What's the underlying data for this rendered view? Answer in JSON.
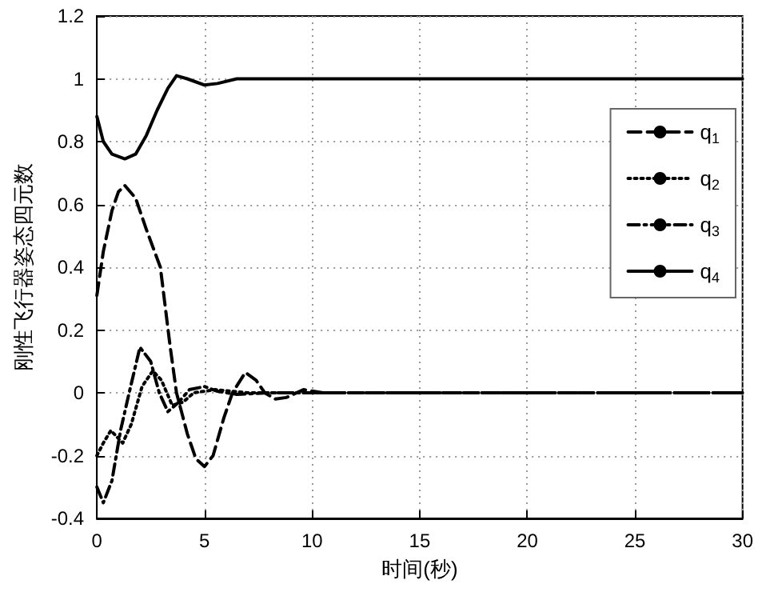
{
  "chart_data": {
    "type": "line",
    "xlabel": "时间(秒)",
    "ylabel": "刚性飞行器姿态四元数",
    "xlim": [
      0,
      30
    ],
    "xticks": [
      0,
      5,
      10,
      15,
      20,
      25,
      30
    ],
    "ylim": [
      -0.4,
      1.2
    ],
    "yticks": [
      -0.4,
      -0.2,
      0,
      0.2,
      0.4,
      0.6,
      0.8,
      1,
      1.2
    ],
    "grid": true,
    "legend": "right",
    "marker": "none",
    "series": [
      {
        "name": "q$_{1}$",
        "color": "#000000",
        "line_style": "dashed",
        "x": [
          0,
          0.3,
          0.7,
          1.0,
          1.3,
          1.8,
          2.3,
          2.95,
          3.4,
          3.7,
          4.2,
          4.6,
          5,
          5.4,
          5.9,
          6.3,
          6.9,
          7.4,
          7.8,
          8.3,
          8.8,
          9.6,
          10.5,
          15,
          20,
          25,
          30
        ],
        "values": [
          0.31,
          0.45,
          0.58,
          0.64,
          0.66,
          0.62,
          0.52,
          0.4,
          0.15,
          0,
          -0.13,
          -0.21,
          -0.235,
          -0.2,
          -0.08,
          0,
          0.065,
          0.04,
          0,
          -0.02,
          -0.015,
          0.01,
          0,
          0,
          0,
          0,
          0
        ]
      },
      {
        "name": "q$_{2}$",
        "color": "#000000",
        "line_style": "dotted",
        "x": [
          0,
          0.3,
          0.65,
          1.2,
          1.6,
          2.1,
          2.6,
          3.0,
          3.5,
          4.0,
          4.5,
          5.5,
          7,
          10,
          15,
          20,
          25,
          30
        ],
        "values": [
          -0.2,
          -0.16,
          -0.12,
          -0.16,
          -0.1,
          0.02,
          0.07,
          0.04,
          -0.04,
          -0.03,
          0,
          0.01,
          0,
          0,
          0,
          0,
          0,
          0
        ]
      },
      {
        "name": "q$_{3}$",
        "color": "#000000",
        "line_style": "dashdot",
        "x": [
          0,
          0.3,
          0.7,
          1.1,
          1.5,
          2.0,
          2.5,
          2.9,
          3.3,
          3.8,
          4.3,
          5,
          5.6,
          6.5,
          8,
          10,
          15,
          20,
          25,
          30
        ],
        "values": [
          -0.3,
          -0.35,
          -0.28,
          -0.12,
          0,
          0.145,
          0.1,
          0.0,
          -0.06,
          -0.03,
          0.01,
          0.02,
          0.005,
          -0.005,
          0,
          0,
          0,
          0,
          0,
          0
        ]
      },
      {
        "name": "q$_{4}$",
        "color": "#000000",
        "line_style": "solid",
        "x": [
          0,
          0.3,
          0.7,
          1.3,
          1.8,
          2.3,
          2.8,
          3.3,
          3.7,
          4.2,
          5,
          5.6,
          6.5,
          7,
          10,
          15,
          20,
          25,
          30
        ],
        "values": [
          0.88,
          0.8,
          0.76,
          0.745,
          0.76,
          0.82,
          0.9,
          0.97,
          1.01,
          1.0,
          0.98,
          0.985,
          1.0,
          1.0,
          1.0,
          1.0,
          1.0,
          1.0,
          1.0
        ]
      }
    ]
  }
}
